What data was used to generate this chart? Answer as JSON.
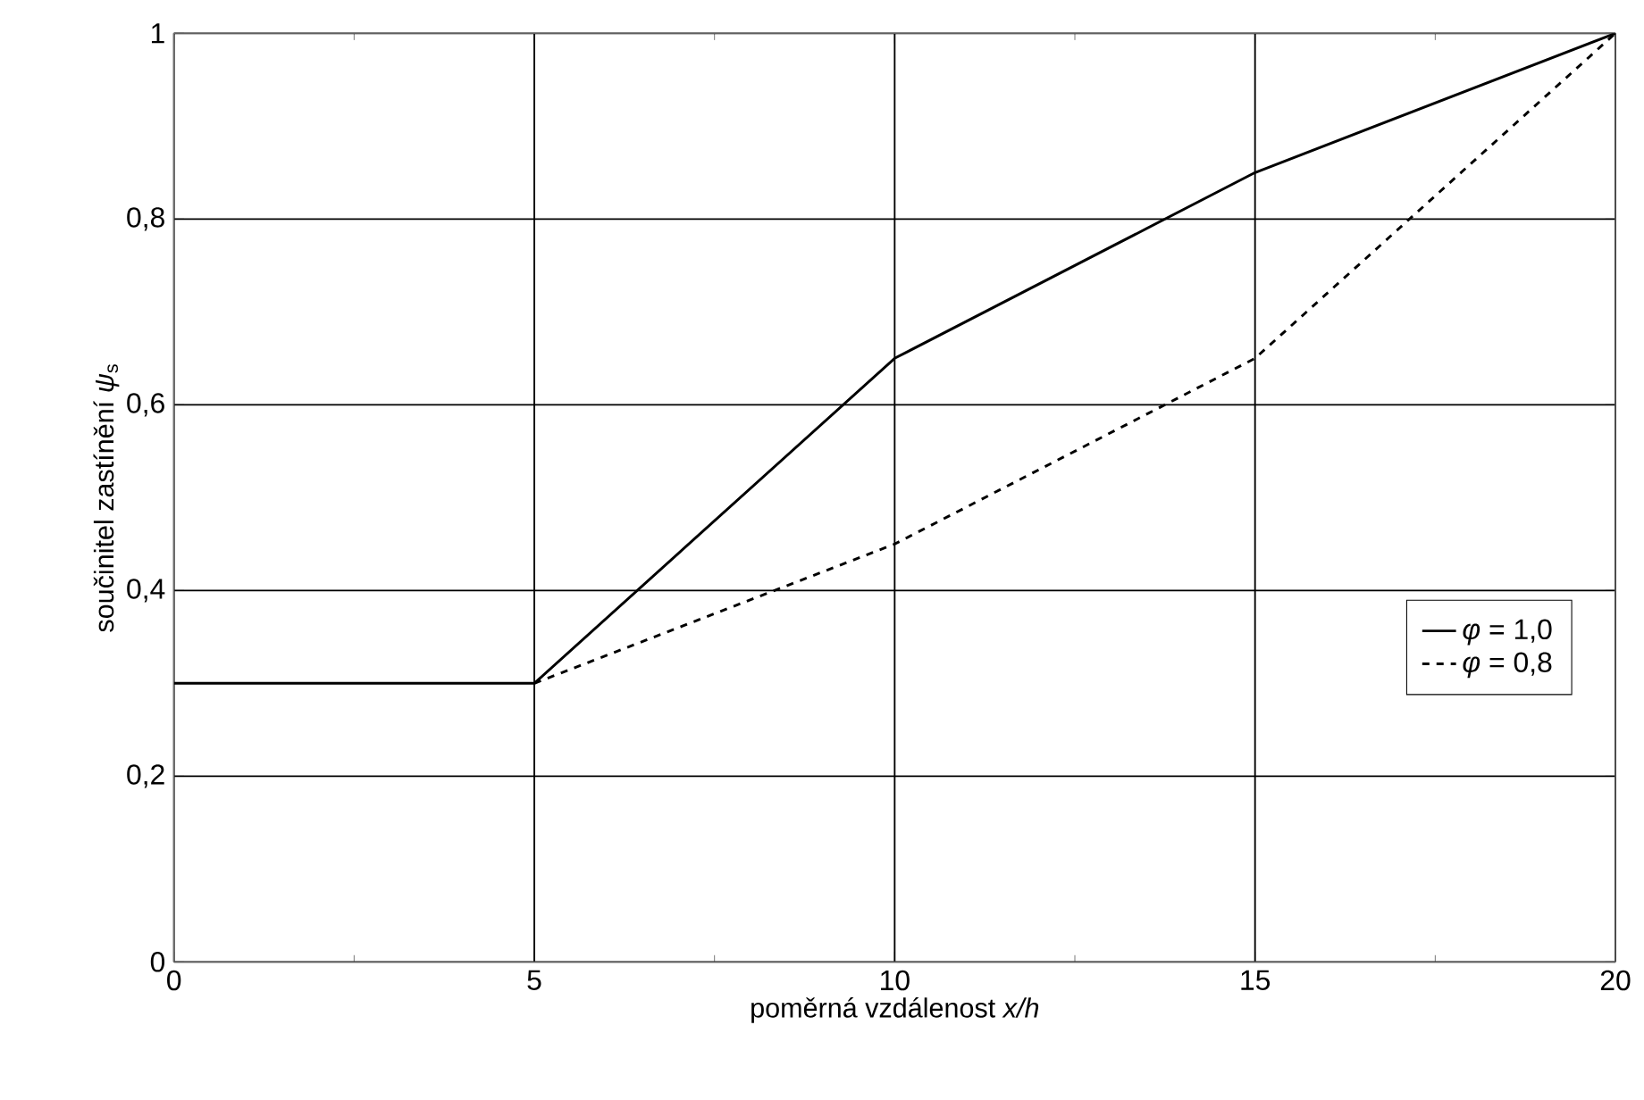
{
  "chart_data": {
    "type": "line",
    "xlabel": "poměrná vzdálenost *x/h*",
    "ylabel": "součinitel zastínění *ψ*$_{s}$",
    "xlim": [
      0,
      20
    ],
    "ylim": [
      0,
      1
    ],
    "xticks": [
      0,
      5,
      10,
      15,
      20
    ],
    "yticks": [
      0,
      {
        "value": 0.2,
        "label": "0,2"
      },
      {
        "value": 0.4,
        "label": "0,4"
      },
      {
        "value": 0.6,
        "label": "0,6"
      },
      {
        "value": 0.8,
        "label": "0,8"
      },
      1
    ],
    "grid": true,
    "legend": "right",
    "marker": "none",
    "series": [
      {
        "name": "*φ* = 1,0",
        "color": "#000000",
        "line_style": "solid",
        "x": [
          0,
          5,
          10,
          15,
          20
        ],
        "values": [
          0.3,
          0.3,
          0.65,
          0.85,
          1
        ]
      },
      {
        "name": "*φ* = 0,8",
        "color": "#000000",
        "line_style": "dashed",
        "x": [
          5,
          10,
          15,
          20
        ],
        "values": [
          0.3,
          0.45,
          0.65,
          1
        ]
      }
    ]
  }
}
